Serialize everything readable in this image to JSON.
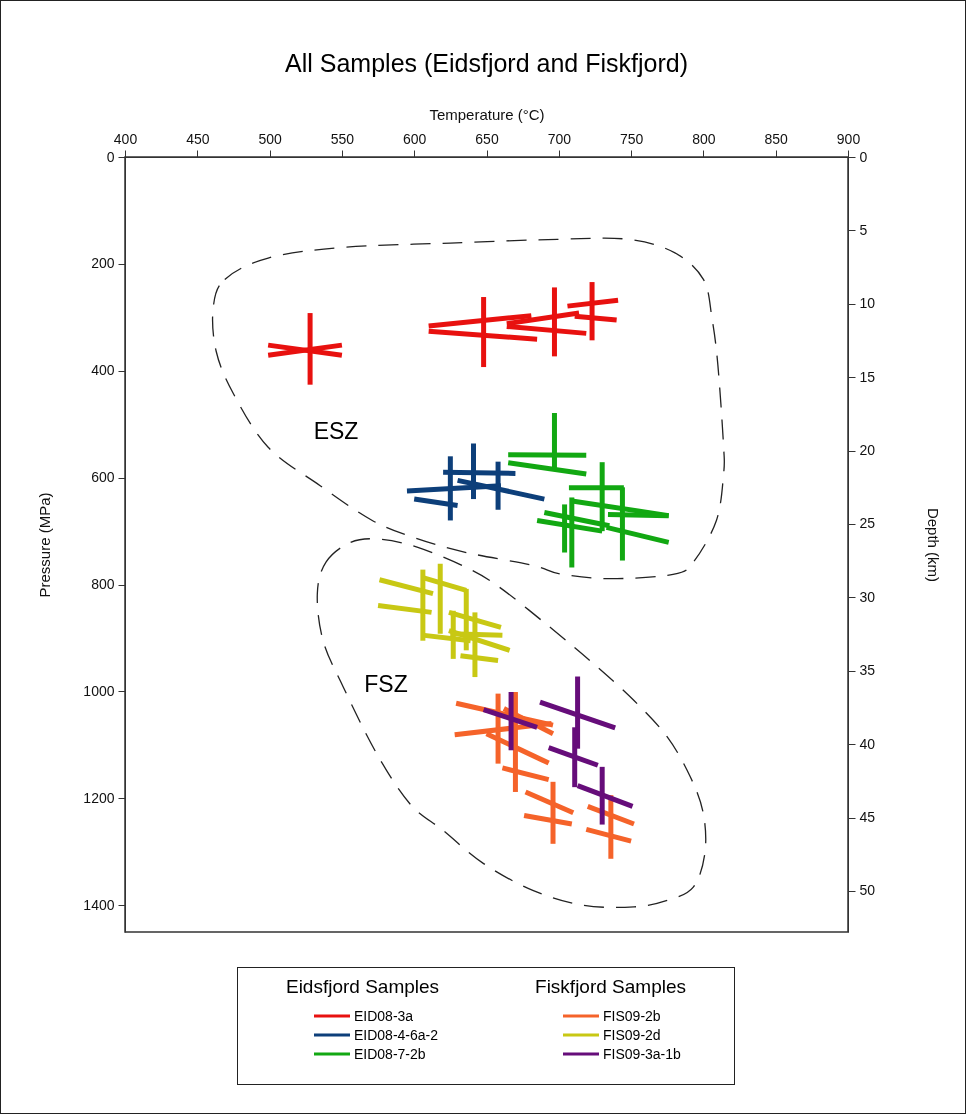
{
  "chart_data": {
    "type": "line",
    "title": "All Samples (Eidsfjord and Fiskfjord)",
    "xlabel": "Temperature (°C)",
    "ylabel": "Pressure (MPa)",
    "y2label": "Depth (km)",
    "xlim": [
      400,
      900
    ],
    "xticks": [
      400,
      450,
      500,
      550,
      600,
      650,
      700,
      750,
      800,
      850,
      900
    ],
    "ylim": [
      1450,
      0
    ],
    "yticks": [
      0,
      200,
      400,
      600,
      800,
      1000,
      1200,
      1400
    ],
    "y2lim": [
      52.8,
      0
    ],
    "y2ticks": [
      0,
      5,
      10,
      15,
      20,
      25,
      30,
      35,
      40,
      45,
      50
    ],
    "legend": "bottom",
    "annotations": [
      "ESZ",
      "FSZ",
      "Eidsfjord Samples",
      "Fiskfjord Samples"
    ],
    "series": [
      {
        "name": "EID08-3a",
        "color": "#e8110f",
        "x": [
          528,
          528
        ],
        "values": [
          292,
          426
        ]
      },
      {
        "color": "#e8110f",
        "x": [
          499,
          550
        ],
        "values": [
          352,
          371
        ]
      },
      {
        "color": "#e8110f",
        "x": [
          499,
          550
        ],
        "values": [
          371,
          352
        ]
      },
      {
        "color": "#e8110f",
        "x": [
          648,
          648
        ],
        "values": [
          262,
          393
        ]
      },
      {
        "color": "#e8110f",
        "x": [
          610,
          681
        ],
        "values": [
          316,
          297
        ]
      },
      {
        "color": "#e8110f",
        "x": [
          610,
          685
        ],
        "values": [
          326,
          341
        ]
      },
      {
        "color": "#e8110f",
        "x": [
          697,
          697
        ],
        "values": [
          244,
          373
        ]
      },
      {
        "color": "#e8110f",
        "x": [
          664,
          714
        ],
        "values": [
          312,
          292
        ]
      },
      {
        "color": "#e8110f",
        "x": [
          664,
          719
        ],
        "values": [
          317,
          330
        ]
      },
      {
        "color": "#e8110f",
        "x": [
          723,
          723
        ],
        "values": [
          234,
          343
        ]
      },
      {
        "color": "#e8110f",
        "x": [
          706,
          741
        ],
        "values": [
          279,
          268
        ]
      },
      {
        "color": "#e8110f",
        "x": [
          711,
          740
        ],
        "values": [
          298,
          305
        ]
      },
      {
        "name": "EID08-4-6a-2",
        "color": "#0d3f7a",
        "x": [
          641,
          641
        ],
        "values": [
          536,
          640
        ]
      },
      {
        "color": "#0d3f7a",
        "x": [
          625,
          625
        ],
        "values": [
          560,
          680
        ]
      },
      {
        "color": "#0d3f7a",
        "x": [
          658,
          658
        ],
        "values": [
          570,
          660
        ]
      },
      {
        "color": "#0d3f7a",
        "x": [
          620,
          670
        ],
        "values": [
          590,
          592
        ]
      },
      {
        "color": "#0d3f7a",
        "x": [
          595,
          660
        ],
        "values": [
          625,
          615
        ]
      },
      {
        "color": "#0d3f7a",
        "x": [
          600,
          630
        ],
        "values": [
          640,
          652
        ]
      },
      {
        "color": "#0d3f7a",
        "x": [
          630,
          690
        ],
        "values": [
          605,
          640
        ]
      },
      {
        "name": "EID08-7-2b",
        "color": "#12a812",
        "x": [
          697,
          697
        ],
        "values": [
          479,
          585
        ]
      },
      {
        "color": "#12a812",
        "x": [
          665,
          719
        ],
        "values": [
          557,
          558
        ]
      },
      {
        "color": "#12a812",
        "x": [
          665,
          719
        ],
        "values": [
          572,
          593
        ]
      },
      {
        "color": "#12a812",
        "x": [
          730,
          730
        ],
        "values": [
          571,
          700
        ]
      },
      {
        "color": "#12a812",
        "x": [
          744,
          744
        ],
        "values": [
          618,
          755
        ]
      },
      {
        "color": "#12a812",
        "x": [
          707,
          745
        ],
        "values": [
          619,
          619
        ]
      },
      {
        "color": "#12a812",
        "x": [
          708,
          776
        ],
        "values": [
          643,
          671
        ]
      },
      {
        "color": "#12a812",
        "x": [
          734,
          776
        ],
        "values": [
          669,
          671
        ]
      },
      {
        "color": "#12a812",
        "x": [
          733,
          776
        ],
        "values": [
          693,
          721
        ]
      },
      {
        "color": "#12a812",
        "x": [
          709,
          709
        ],
        "values": [
          637,
          768
        ]
      },
      {
        "color": "#12a812",
        "x": [
          704,
          704
        ],
        "values": [
          650,
          740
        ]
      },
      {
        "color": "#12a812",
        "x": [
          690,
          735
        ],
        "values": [
          665,
          690
        ]
      },
      {
        "color": "#12a812",
        "x": [
          685,
          730
        ],
        "values": [
          680,
          700
        ]
      },
      {
        "name": "FIS09-2b",
        "color": "#f5632a",
        "x": [
          658,
          658
        ],
        "values": [
          1004,
          1135
        ]
      },
      {
        "color": "#f5632a",
        "x": [
          670,
          670
        ],
        "values": [
          1001,
          1188
        ]
      },
      {
        "color": "#f5632a",
        "x": [
          696,
          696
        ],
        "values": [
          1169,
          1285
        ]
      },
      {
        "color": "#f5632a",
        "x": [
          736,
          736
        ],
        "values": [
          1194,
          1313
        ]
      },
      {
        "color": "#f5632a",
        "x": [
          629,
          696
        ],
        "values": [
          1022,
          1063
        ]
      },
      {
        "color": "#f5632a",
        "x": [
          628,
          695
        ],
        "values": [
          1081,
          1060
        ]
      },
      {
        "color": "#f5632a",
        "x": [
          662,
          696
        ],
        "values": [
          1032,
          1079
        ]
      },
      {
        "color": "#f5632a",
        "x": [
          650,
          693
        ],
        "values": [
          1079,
          1134
        ]
      },
      {
        "color": "#f5632a",
        "x": [
          661,
          693
        ],
        "values": [
          1143,
          1165
        ]
      },
      {
        "color": "#f5632a",
        "x": [
          677,
          710
        ],
        "values": [
          1188,
          1227
        ]
      },
      {
        "color": "#f5632a",
        "x": [
          676,
          709
        ],
        "values": [
          1232,
          1248
        ]
      },
      {
        "color": "#f5632a",
        "x": [
          720,
          752
        ],
        "values": [
          1215,
          1248
        ]
      },
      {
        "color": "#f5632a",
        "x": [
          719,
          750
        ],
        "values": [
          1258,
          1280
        ]
      },
      {
        "name": "FIS09-2d",
        "color": "#c8c814",
        "x": [
          606,
          606
        ],
        "values": [
          772,
          905
        ]
      },
      {
        "color": "#c8c814",
        "x": [
          618,
          618
        ],
        "values": [
          761,
          892
        ]
      },
      {
        "color": "#c8c814",
        "x": [
          627,
          627
        ],
        "values": [
          849,
          939
        ]
      },
      {
        "color": "#c8c814",
        "x": [
          636,
          636
        ],
        "values": [
          808,
          923
        ]
      },
      {
        "color": "#c8c814",
        "x": [
          642,
          642
        ],
        "values": [
          852,
          973
        ]
      },
      {
        "color": "#c8c814",
        "x": [
          576,
          613
        ],
        "values": [
          791,
          817
        ]
      },
      {
        "color": "#c8c814",
        "x": [
          575,
          612
        ],
        "values": [
          839,
          852
        ]
      },
      {
        "color": "#c8c814",
        "x": [
          606,
          636
        ],
        "values": [
          787,
          811
        ]
      },
      {
        "color": "#c8c814",
        "x": [
          607,
          639
        ],
        "values": [
          895,
          905
        ]
      },
      {
        "color": "#c8c814",
        "x": [
          624,
          660
        ],
        "values": [
          852,
          880
        ]
      },
      {
        "color": "#c8c814",
        "x": [
          624,
          666
        ],
        "values": [
          886,
          923
        ]
      },
      {
        "color": "#c8c814",
        "x": [
          625,
          661
        ],
        "values": [
          892,
          895
        ]
      },
      {
        "color": "#c8c814",
        "x": [
          632,
          658
        ],
        "values": [
          933,
          942
        ]
      },
      {
        "name": "FIS09-3a-1b",
        "color": "#660d7a",
        "x": [
          667,
          667
        ],
        "values": [
          1001,
          1110
        ]
      },
      {
        "color": "#660d7a",
        "x": [
          713,
          713
        ],
        "values": [
          972,
          1107
        ]
      },
      {
        "color": "#660d7a",
        "x": [
          711,
          711
        ],
        "values": [
          1067,
          1179
        ]
      },
      {
        "color": "#660d7a",
        "x": [
          730,
          730
        ],
        "values": [
          1141,
          1249
        ]
      },
      {
        "color": "#660d7a",
        "x": [
          648,
          685
        ],
        "values": [
          1034,
          1067
        ]
      },
      {
        "color": "#660d7a",
        "x": [
          687,
          739
        ],
        "values": [
          1020,
          1068
        ]
      },
      {
        "color": "#660d7a",
        "x": [
          693,
          727
        ],
        "values": [
          1105,
          1138
        ]
      },
      {
        "color": "#660d7a",
        "x": [
          713,
          751
        ],
        "values": [
          1176,
          1215
        ]
      }
    ]
  }
}
